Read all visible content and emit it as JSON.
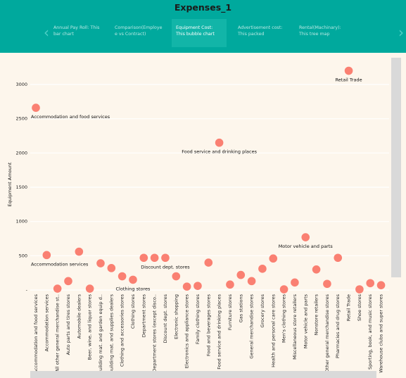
{
  "app": {
    "title": "Expenses_1"
  },
  "tabs": [
    {
      "label": "Annual Pay Roll: This bar chart",
      "active": false
    },
    {
      "label": "Comparison(Employe e vs Contract)",
      "active": false
    },
    {
      "label": "Equipment Cost: This bubble chart",
      "active": true
    },
    {
      "label": "Advertisement cost: This packed",
      "active": false
    },
    {
      "label": "Rental(Machinary): This tree map",
      "active": false
    }
  ],
  "icons": {
    "prev": "chevron-left-icon",
    "next": "chevron-right-icon"
  },
  "colors": {
    "header": "#00a99d",
    "active_tab": "#12b5a8",
    "bubble": "#fa8072",
    "background": "#fdf6ec"
  },
  "chart_data": {
    "type": "scatter",
    "ylabel": "Equipment Amount",
    "ylim": [
      0,
      3300
    ],
    "yticks": [
      0,
      500,
      1000,
      1500,
      2000,
      2500,
      3000
    ],
    "ytick_labels": [
      "-",
      "500",
      "1000",
      "1500",
      "2000",
      "2500",
      "3000"
    ],
    "categories": [
      "Accommodation and food services",
      "Accommodation services",
      "All other general merchandise st..",
      "Auto parts and tires stores",
      "Automobile dealers",
      "Beer, wine, and liquor stores",
      "Building mat. and garden equip d..",
      "Building mat. and supplies dealers",
      "Clothing and accessories stores",
      "Clothing stores",
      "Department stores",
      "Department stores (except disco..",
      "Discount dept. stores",
      "Electronic shopping",
      "Electronics and appliance stores",
      "Family clothing stores",
      "Food and beverages stores",
      "Food service and drinking places",
      "Furniture stores",
      "Gas stations",
      "General merchandise stores",
      "Grocery stores",
      "Health and personal care stores",
      "Men's clothing stores",
      "Miscellaneous store retailers",
      "Motor vehicle and parts",
      "Nonstore retailers",
      "Other general merchandise stores",
      "Pharmacies and drug stores",
      "Retail Trade",
      "Shoe stores",
      "Sporting, book, and music stores",
      "Warehouse clubs and super stores"
    ],
    "values": [
      2660,
      510,
      20,
      130,
      560,
      20,
      390,
      320,
      200,
      150,
      470,
      470,
      470,
      200,
      50,
      60,
      400,
      2150,
      80,
      220,
      130,
      310,
      460,
      10,
      110,
      770,
      300,
      90,
      470,
      3200,
      10,
      100,
      70
    ],
    "annotations": [
      {
        "label": "Accommodation and food services",
        "category": "Accommodation and food services"
      },
      {
        "label": "Accommodation services",
        "category": "Accommodation services"
      },
      {
        "label": "Clothing stores",
        "category": "Clothing stores"
      },
      {
        "label": "Discount dept. stores",
        "category": "Discount dept. stores"
      },
      {
        "label": "Food service and drinking places",
        "category": "Food service and drinking places"
      },
      {
        "label": "Motor vehicle and parts",
        "category": "Motor vehicle and parts"
      },
      {
        "label": "Retail Trade",
        "category": "Retail Trade"
      }
    ]
  }
}
